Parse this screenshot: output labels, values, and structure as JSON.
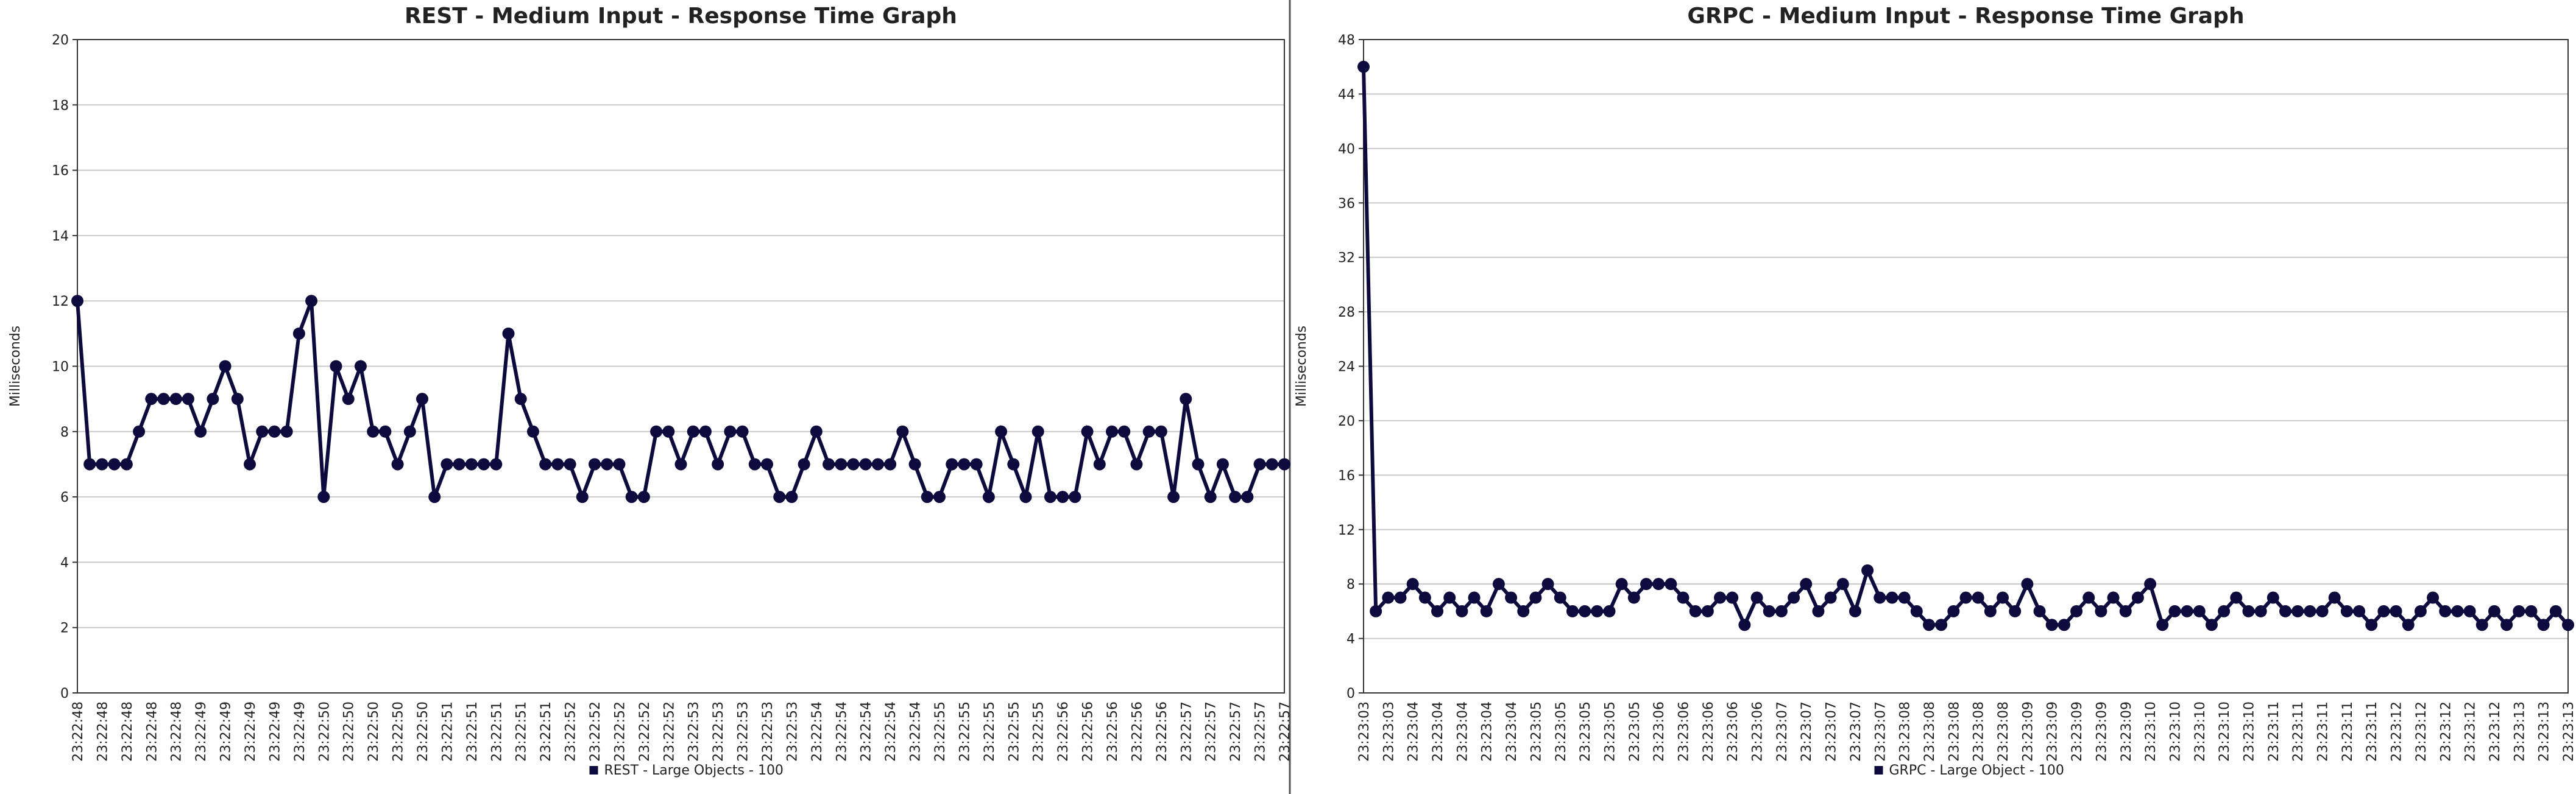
{
  "chart_data": [
    {
      "type": "line",
      "title": "REST - Medium Input - Response Time Graph",
      "y_label": "Milliseconds",
      "categories": [
        "23:22:48",
        null,
        "23:22:48",
        null,
        "23:22:48",
        null,
        "23:22:48",
        null,
        "23:22:48",
        null,
        "23:22:49",
        null,
        "23:22:49",
        null,
        "23:22:49",
        null,
        "23:22:49",
        null,
        "23:22:49",
        null,
        "23:22:50",
        null,
        "23:22:50",
        null,
        "23:22:50",
        null,
        "23:22:50",
        null,
        "23:22:50",
        null,
        "23:22:51",
        null,
        "23:22:51",
        null,
        "23:22:51",
        null,
        "23:22:51",
        null,
        "23:22:51",
        null,
        "23:22:52",
        null,
        "23:22:52",
        null,
        "23:22:52",
        null,
        "23:22:52",
        null,
        "23:22:52",
        null,
        "23:22:53",
        null,
        "23:22:53",
        null,
        "23:22:53",
        null,
        "23:22:53",
        null,
        "23:22:53",
        null,
        "23:22:54",
        null,
        "23:22:54",
        null,
        "23:22:54",
        null,
        "23:22:54",
        null,
        "23:22:54",
        null,
        "23:22:55",
        null,
        "23:22:55",
        null,
        "23:22:55",
        null,
        "23:22:55",
        null,
        "23:22:55",
        null,
        "23:22:56",
        null,
        "23:22:56",
        null,
        "23:22:56",
        null,
        "23:22:56",
        null,
        "23:22:56",
        null,
        "23:22:57",
        null,
        "23:22:57",
        null,
        "23:22:57",
        null,
        "23:22:57",
        null,
        "23:22:57"
      ],
      "series": [
        {
          "name": "REST - Large Objects - 100",
          "color": "#0d0b3d",
          "values": [
            12,
            7,
            7,
            7,
            7,
            8,
            9,
            9,
            9,
            9,
            8,
            9,
            10,
            9,
            7,
            8,
            8,
            8,
            11,
            12,
            6,
            10,
            9,
            10,
            8,
            8,
            7,
            8,
            9,
            6,
            7,
            7,
            7,
            7,
            7,
            11,
            9,
            8,
            7,
            7,
            7,
            6,
            7,
            7,
            7,
            6,
            6,
            8,
            8,
            7,
            8,
            8,
            7,
            8,
            8,
            7,
            7,
            6,
            6,
            7,
            8,
            7,
            7,
            7,
            7,
            7,
            7,
            8,
            7,
            6,
            6,
            7,
            7,
            7,
            6,
            8,
            7,
            6,
            8,
            6,
            6,
            6,
            8,
            7,
            8,
            8,
            7,
            8,
            8,
            6,
            9,
            7,
            6,
            7,
            6,
            6,
            7,
            7,
            7
          ]
        }
      ],
      "ylim": [
        0,
        20
      ],
      "yticks": [
        0,
        2,
        4,
        6,
        8,
        10,
        12,
        14,
        16,
        18,
        20
      ],
      "grid": true
    },
    {
      "type": "line",
      "title": "GRPC - Medium Input - Response Time Graph",
      "y_label": "Milliseconds",
      "categories": [
        "23:23:03",
        null,
        "23:23:03",
        null,
        "23:23:04",
        null,
        "23:23:04",
        null,
        "23:23:04",
        null,
        "23:23:04",
        null,
        "23:23:04",
        null,
        "23:23:05",
        null,
        "23:23:05",
        null,
        "23:23:05",
        null,
        "23:23:05",
        null,
        "23:23:05",
        null,
        "23:23:06",
        null,
        "23:23:06",
        null,
        "23:23:06",
        null,
        "23:23:06",
        null,
        "23:23:06",
        null,
        "23:23:07",
        null,
        "23:23:07",
        null,
        "23:23:07",
        null,
        "23:23:07",
        null,
        "23:23:07",
        null,
        "23:23:08",
        null,
        "23:23:08",
        null,
        "23:23:08",
        null,
        "23:23:08",
        null,
        "23:23:08",
        null,
        "23:23:09",
        null,
        "23:23:09",
        null,
        "23:23:09",
        null,
        "23:23:09",
        null,
        "23:23:09",
        null,
        "23:23:10",
        null,
        "23:23:10",
        null,
        "23:23:10",
        null,
        "23:23:10",
        null,
        "23:23:10",
        null,
        "23:23:11",
        null,
        "23:23:11",
        null,
        "23:23:11",
        null,
        "23:23:11",
        null,
        "23:23:11",
        null,
        "23:23:12",
        null,
        "23:23:12",
        null,
        "23:23:12",
        null,
        "23:23:12",
        null,
        "23:23:12",
        null,
        "23:23:13",
        null,
        "23:23:13",
        null,
        "23:23:13"
      ],
      "series": [
        {
          "name": "GRPC - Large Object - 100",
          "color": "#0d0b3d",
          "values": [
            46,
            6,
            7,
            7,
            8,
            7,
            6,
            7,
            6,
            7,
            6,
            8,
            7,
            6,
            7,
            8,
            7,
            6,
            6,
            6,
            6,
            8,
            7,
            8,
            8,
            8,
            7,
            6,
            6,
            7,
            7,
            5,
            7,
            6,
            6,
            7,
            8,
            6,
            7,
            8,
            6,
            9,
            7,
            7,
            7,
            6,
            5,
            5,
            6,
            7,
            7,
            6,
            7,
            6,
            8,
            6,
            5,
            5,
            6,
            7,
            6,
            7,
            6,
            7,
            8,
            5,
            6,
            6,
            6,
            5,
            6,
            7,
            6,
            6,
            7,
            6,
            6,
            6,
            6,
            7,
            6,
            6,
            5,
            6,
            6,
            5,
            6,
            7,
            6,
            6,
            6,
            5,
            6,
            5,
            6,
            6,
            5,
            6,
            5
          ]
        }
      ],
      "ylim": [
        0,
        48
      ],
      "yticks": [
        0,
        4,
        8,
        12,
        16,
        20,
        24,
        28,
        32,
        36,
        40,
        44,
        48
      ],
      "grid": true
    }
  ]
}
